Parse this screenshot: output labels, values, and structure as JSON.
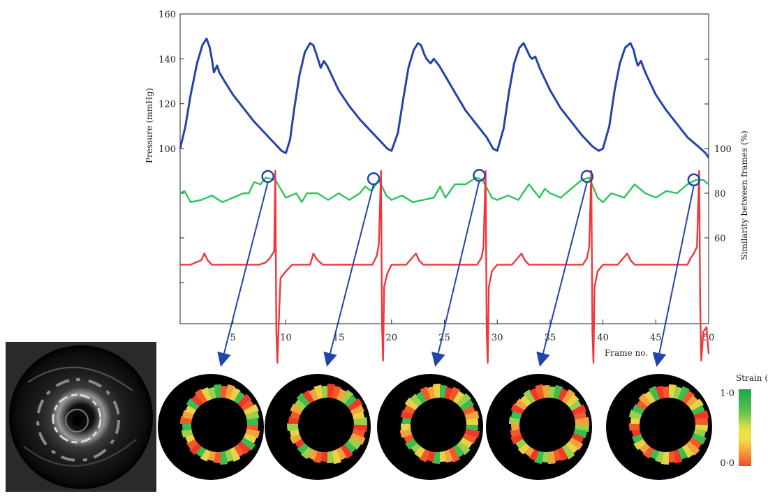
{
  "chart_data": {
    "type": "line",
    "xlabel": "Frame no.",
    "ylabel_left": "Pressure (mmHg)",
    "ylabel_right": "Similarity between frames (%)",
    "xlim": [
      0,
      50
    ],
    "ylim_left": [
      90,
      160
    ],
    "ylim_right": [
      0,
      100
    ],
    "x_ticks": [
      5,
      10,
      15,
      20,
      25,
      30,
      35,
      40,
      45,
      50
    ],
    "y_ticks_left": [
      100,
      120,
      140,
      160
    ],
    "y_ticks_right": [
      60,
      80,
      100
    ],
    "colors": {
      "pressure": "#2443a8",
      "similarity": "#2cc45a",
      "ecg": "#f0363a",
      "marker": "#2443a8"
    },
    "series": [
      {
        "key": "pressure",
        "x": [
          0.0,
          0.5,
          1.0,
          1.6,
          2.1,
          2.5,
          2.8,
          3.0,
          3.2,
          3.5,
          3.7,
          4.2,
          5.0,
          6.0,
          7.0,
          8.0,
          9.0,
          9.6,
          10.0,
          10.4,
          10.8,
          11.3,
          11.8,
          12.3,
          12.6,
          12.9,
          13.1,
          13.3,
          13.6,
          13.9,
          14.3,
          15.0,
          16.0,
          17.0,
          18.0,
          19.0,
          19.6,
          20.0,
          20.6,
          21.1,
          21.6,
          22.1,
          22.5,
          22.8,
          23.1,
          23.3,
          23.7,
          24.0,
          24.5,
          25.0,
          26.0,
          27.0,
          28.0,
          29.0,
          29.6,
          30.0,
          30.6,
          31.1,
          31.6,
          32.1,
          32.5,
          32.8,
          33.1,
          33.3,
          33.6,
          34.0,
          34.5,
          35.0,
          36.0,
          37.0,
          38.0,
          39.0,
          39.6,
          40.0,
          40.6,
          41.1,
          41.6,
          42.1,
          42.6,
          42.9,
          43.1,
          43.3,
          43.6,
          44.0,
          44.5,
          45.0,
          46.0,
          47.0,
          48.0,
          49.0,
          49.7,
          50.0
        ],
        "y": [
          100,
          110,
          124,
          138,
          146,
          149,
          145,
          140,
          134,
          137,
          134,
          130,
          124,
          118,
          112,
          107,
          102,
          99,
          98,
          104,
          118,
          133,
          143,
          147,
          146,
          142,
          139,
          136,
          139,
          137,
          133,
          126,
          119,
          113,
          108,
          103,
          100,
          99,
          107,
          122,
          136,
          144,
          147,
          146,
          142,
          140,
          138,
          140,
          137,
          133,
          125,
          117,
          111,
          105,
          100,
          99,
          109,
          125,
          138,
          145,
          147,
          144,
          141,
          140,
          141,
          136,
          131,
          126,
          118,
          112,
          106,
          101,
          99,
          100,
          110,
          126,
          138,
          145,
          147,
          144,
          140,
          137,
          139,
          134,
          129,
          124,
          117,
          111,
          105,
          101,
          98,
          96
        ]
      },
      {
        "key": "similarity",
        "x": [
          0.0,
          0.4,
          1.0,
          2.0,
          3.0,
          4.0,
          5.0,
          6.0,
          6.5,
          7.0,
          7.6,
          8.1,
          9.0,
          10.0,
          11.0,
          11.5,
          12.0,
          13.0,
          14.0,
          15.0,
          16.0,
          17.0,
          17.5,
          18.1,
          18.8,
          19.5,
          20.0,
          21.0,
          22.0,
          23.0,
          24.0,
          24.6,
          25.1,
          26.0,
          27.0,
          28.0,
          28.6,
          29.5,
          30.0,
          31.0,
          32.0,
          33.0,
          34.0,
          34.5,
          35.0,
          36.0,
          37.0,
          38.0,
          38.7,
          39.5,
          40.0,
          40.8,
          42.0,
          43.0,
          44.0,
          45.0,
          46.0,
          47.0,
          48.0,
          48.8,
          49.5,
          50.0
        ],
        "y": [
          80,
          81,
          76,
          77,
          79,
          76,
          78,
          80,
          80,
          85,
          84,
          87,
          86,
          78,
          80,
          76,
          80,
          80,
          77,
          80,
          77,
          80,
          83,
          81,
          86,
          79,
          77,
          79,
          76,
          77,
          78,
          83,
          78,
          84,
          84,
          87,
          86,
          78,
          77,
          79,
          77,
          84,
          78,
          82,
          80,
          78,
          82,
          86,
          87,
          78,
          76,
          80,
          78,
          84,
          80,
          78,
          81,
          80,
          84,
          86,
          86,
          84
        ]
      },
      {
        "key": "ecg",
        "x": [
          0.0,
          1.0,
          2.0,
          2.3,
          2.6,
          3.0,
          3.5,
          4.5,
          6.0,
          7.5,
          8.1,
          8.5,
          8.9,
          9.0,
          9.1,
          9.2,
          9.3,
          9.5,
          10.0,
          10.6,
          11.3,
          12.3,
          12.6,
          13.0,
          13.5,
          15.0,
          16.5,
          18.2,
          18.6,
          18.8,
          19.0,
          19.1,
          19.2,
          19.3,
          19.6,
          20.0,
          20.6,
          21.4,
          22.3,
          22.6,
          23.0,
          23.5,
          25.0,
          26.5,
          28.1,
          28.5,
          28.7,
          28.9,
          29.0,
          29.1,
          29.2,
          29.5,
          30.0,
          30.6,
          31.4,
          32.3,
          32.6,
          33.0,
          33.5,
          35.0,
          36.5,
          38.1,
          38.5,
          38.7,
          38.9,
          39.0,
          39.1,
          39.2,
          39.5,
          40.0,
          40.6,
          41.4,
          42.3,
          42.6,
          43.0,
          43.5,
          45.0,
          46.5,
          48.0,
          48.3,
          48.6,
          48.9,
          49.1,
          49.2,
          49.3,
          49.5,
          49.8,
          50.0
        ],
        "y": [
          48,
          48,
          50,
          53,
          50,
          48,
          48,
          48,
          48,
          48,
          49,
          51,
          54,
          90,
          18,
          4,
          18,
          42,
          45,
          48,
          48,
          48,
          53,
          50,
          48,
          48,
          48,
          48,
          52,
          57,
          90,
          20,
          5,
          38,
          44,
          48,
          48,
          48,
          53,
          50,
          48,
          48,
          48,
          48,
          48,
          51,
          56,
          90,
          18,
          4,
          38,
          45,
          48,
          48,
          48,
          53,
          50,
          48,
          48,
          48,
          48,
          48,
          51,
          56,
          90,
          18,
          4,
          38,
          45,
          48,
          48,
          48,
          53,
          50,
          48,
          48,
          48,
          48,
          48,
          51,
          53,
          56,
          90,
          30,
          5,
          18,
          20,
          8
        ]
      }
    ],
    "markers": [
      {
        "x": 8.3,
        "y": 87.5,
        "image_index": 0
      },
      {
        "x": 18.3,
        "y": 86.5,
        "image_index": 1
      },
      {
        "x": 28.3,
        "y": 88.0,
        "image_index": 2
      },
      {
        "x": 38.5,
        "y": 87.5,
        "image_index": 3
      },
      {
        "x": 48.6,
        "y": 86.0,
        "image_index": 4
      }
    ],
    "colorbar": {
      "title": "Strain (%)",
      "max_label": "1·0",
      "min_label": "0·0",
      "colors": [
        "#17a650",
        "#62c24a",
        "#c7d93a",
        "#f3e04a",
        "#f6a53a",
        "#f04b2a"
      ]
    },
    "strain_palette": [
      "#f25a2a",
      "#f4a23c",
      "#e8d246",
      "#9bd04a",
      "#3bbd4f",
      "#f0382a"
    ]
  }
}
